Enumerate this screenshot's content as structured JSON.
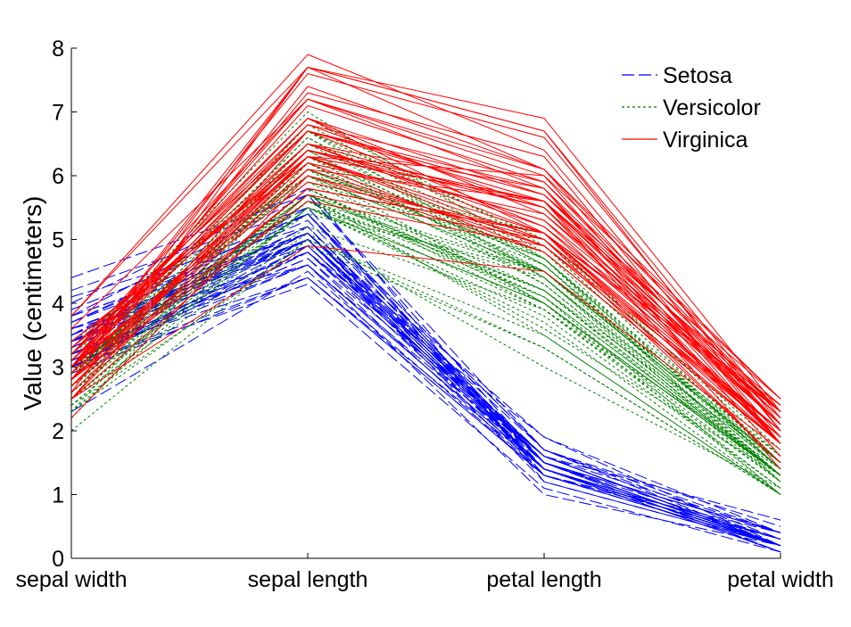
{
  "chart_data": {
    "type": "line",
    "chart_kind": "parallel-coordinates",
    "categories": [
      "sepal width",
      "sepal length",
      "petal length",
      "petal width"
    ],
    "ylabel": "Value (centimeters)",
    "xlabel": "",
    "ylim": [
      0,
      8
    ],
    "yticks": [
      0,
      1,
      2,
      3,
      4,
      5,
      6,
      7,
      8
    ],
    "grid": false,
    "legend_position": "top-right",
    "series": [
      {
        "name": "Setosa",
        "color": "#0000ff",
        "line_style": "dashed",
        "lines": [
          [
            3.5,
            5.1,
            1.4,
            0.2
          ],
          [
            3.0,
            4.9,
            1.4,
            0.2
          ],
          [
            3.2,
            4.7,
            1.3,
            0.2
          ],
          [
            3.1,
            4.6,
            1.5,
            0.2
          ],
          [
            3.6,
            5.0,
            1.4,
            0.2
          ],
          [
            3.9,
            5.4,
            1.7,
            0.4
          ],
          [
            3.4,
            4.6,
            1.4,
            0.3
          ],
          [
            3.4,
            5.0,
            1.5,
            0.2
          ],
          [
            2.9,
            4.4,
            1.4,
            0.2
          ],
          [
            3.1,
            4.9,
            1.5,
            0.1
          ],
          [
            3.7,
            5.4,
            1.5,
            0.2
          ],
          [
            3.4,
            4.8,
            1.6,
            0.2
          ],
          [
            3.0,
            4.8,
            1.4,
            0.1
          ],
          [
            3.0,
            4.3,
            1.1,
            0.1
          ],
          [
            4.0,
            5.8,
            1.2,
            0.2
          ],
          [
            4.4,
            5.7,
            1.5,
            0.4
          ],
          [
            3.9,
            5.4,
            1.3,
            0.4
          ],
          [
            3.5,
            5.1,
            1.4,
            0.3
          ],
          [
            3.8,
            5.7,
            1.7,
            0.3
          ],
          [
            3.8,
            5.1,
            1.5,
            0.3
          ],
          [
            3.4,
            5.4,
            1.7,
            0.2
          ],
          [
            3.7,
            5.1,
            1.5,
            0.4
          ],
          [
            3.6,
            4.6,
            1.0,
            0.2
          ],
          [
            3.3,
            5.1,
            1.7,
            0.5
          ],
          [
            3.4,
            4.8,
            1.9,
            0.2
          ],
          [
            3.0,
            5.0,
            1.6,
            0.2
          ],
          [
            3.4,
            5.0,
            1.6,
            0.4
          ],
          [
            3.5,
            5.2,
            1.5,
            0.2
          ],
          [
            3.4,
            5.2,
            1.4,
            0.2
          ],
          [
            3.2,
            4.7,
            1.6,
            0.2
          ],
          [
            3.1,
            4.8,
            1.6,
            0.2
          ],
          [
            3.4,
            5.4,
            1.5,
            0.4
          ],
          [
            4.1,
            5.2,
            1.5,
            0.1
          ],
          [
            4.2,
            5.5,
            1.4,
            0.2
          ],
          [
            3.1,
            4.9,
            1.5,
            0.2
          ],
          [
            3.2,
            5.0,
            1.2,
            0.2
          ],
          [
            3.5,
            5.5,
            1.3,
            0.2
          ],
          [
            3.6,
            4.9,
            1.4,
            0.1
          ],
          [
            3.0,
            4.4,
            1.3,
            0.2
          ],
          [
            3.4,
            5.1,
            1.5,
            0.2
          ],
          [
            3.5,
            5.0,
            1.3,
            0.3
          ],
          [
            2.3,
            4.5,
            1.3,
            0.3
          ],
          [
            3.2,
            4.4,
            1.3,
            0.2
          ],
          [
            3.5,
            5.0,
            1.6,
            0.6
          ],
          [
            3.8,
            5.1,
            1.9,
            0.4
          ],
          [
            3.0,
            4.8,
            1.4,
            0.3
          ],
          [
            3.8,
            5.1,
            1.6,
            0.2
          ],
          [
            3.2,
            4.6,
            1.4,
            0.2
          ],
          [
            3.7,
            5.3,
            1.5,
            0.2
          ],
          [
            3.3,
            5.0,
            1.4,
            0.2
          ]
        ]
      },
      {
        "name": "Versicolor",
        "color": "#008000",
        "line_style": "dotted",
        "lines": [
          [
            3.2,
            7.0,
            4.7,
            1.4
          ],
          [
            3.2,
            6.4,
            4.5,
            1.5
          ],
          [
            3.1,
            6.9,
            4.9,
            1.5
          ],
          [
            2.3,
            5.5,
            4.0,
            1.3
          ],
          [
            2.8,
            6.5,
            4.6,
            1.5
          ],
          [
            2.8,
            5.7,
            4.5,
            1.3
          ],
          [
            3.3,
            6.3,
            4.7,
            1.6
          ],
          [
            2.4,
            4.9,
            3.3,
            1.0
          ],
          [
            2.9,
            6.6,
            4.6,
            1.3
          ],
          [
            2.7,
            5.2,
            3.9,
            1.4
          ],
          [
            2.0,
            5.0,
            3.5,
            1.0
          ],
          [
            3.0,
            5.9,
            4.2,
            1.5
          ],
          [
            2.2,
            6.0,
            4.0,
            1.0
          ],
          [
            2.9,
            6.1,
            4.7,
            1.4
          ],
          [
            2.9,
            5.6,
            3.6,
            1.3
          ],
          [
            3.1,
            6.7,
            4.4,
            1.4
          ],
          [
            3.0,
            5.6,
            4.5,
            1.5
          ],
          [
            2.7,
            5.8,
            4.1,
            1.0
          ],
          [
            2.2,
            6.2,
            4.5,
            1.5
          ],
          [
            2.5,
            5.6,
            3.9,
            1.1
          ],
          [
            3.2,
            5.9,
            4.8,
            1.8
          ],
          [
            2.8,
            6.1,
            4.0,
            1.3
          ],
          [
            2.5,
            6.3,
            4.9,
            1.5
          ],
          [
            2.8,
            6.1,
            4.7,
            1.2
          ],
          [
            2.9,
            6.4,
            4.3,
            1.3
          ],
          [
            3.0,
            6.6,
            4.4,
            1.4
          ],
          [
            2.8,
            6.8,
            4.8,
            1.4
          ],
          [
            3.0,
            6.7,
            5.0,
            1.7
          ],
          [
            2.9,
            6.0,
            4.5,
            1.5
          ],
          [
            2.6,
            5.7,
            3.5,
            1.0
          ],
          [
            2.4,
            5.5,
            3.8,
            1.1
          ],
          [
            2.4,
            5.5,
            3.7,
            1.0
          ],
          [
            2.7,
            5.8,
            3.9,
            1.2
          ],
          [
            2.7,
            6.0,
            5.1,
            1.6
          ],
          [
            3.0,
            5.4,
            4.5,
            1.5
          ],
          [
            3.4,
            6.0,
            4.5,
            1.6
          ],
          [
            3.1,
            6.7,
            4.7,
            1.5
          ],
          [
            2.3,
            6.3,
            4.4,
            1.3
          ],
          [
            3.0,
            5.6,
            4.1,
            1.3
          ],
          [
            2.5,
            5.5,
            4.0,
            1.3
          ],
          [
            2.6,
            5.5,
            4.4,
            1.2
          ],
          [
            3.0,
            6.1,
            4.6,
            1.4
          ],
          [
            2.6,
            5.8,
            4.0,
            1.2
          ],
          [
            2.3,
            5.0,
            3.3,
            1.0
          ],
          [
            2.7,
            5.6,
            4.2,
            1.3
          ],
          [
            3.0,
            5.7,
            4.2,
            1.2
          ],
          [
            2.9,
            5.7,
            4.2,
            1.3
          ],
          [
            2.9,
            6.2,
            4.3,
            1.3
          ],
          [
            2.5,
            5.1,
            3.0,
            1.1
          ],
          [
            2.8,
            5.7,
            4.1,
            1.3
          ]
        ]
      },
      {
        "name": "Virginica",
        "color": "#ff0000",
        "line_style": "solid",
        "lines": [
          [
            3.3,
            6.3,
            6.0,
            2.5
          ],
          [
            2.7,
            5.8,
            5.1,
            1.9
          ],
          [
            3.0,
            7.1,
            5.9,
            2.1
          ],
          [
            2.9,
            6.3,
            5.6,
            1.8
          ],
          [
            3.0,
            6.5,
            5.8,
            2.2
          ],
          [
            3.0,
            7.6,
            6.6,
            2.1
          ],
          [
            2.5,
            4.9,
            4.5,
            1.7
          ],
          [
            2.9,
            7.3,
            6.3,
            1.8
          ],
          [
            2.5,
            6.7,
            5.8,
            1.8
          ],
          [
            3.6,
            7.2,
            6.1,
            2.5
          ],
          [
            3.2,
            6.5,
            5.1,
            2.0
          ],
          [
            2.7,
            6.4,
            5.3,
            1.9
          ],
          [
            3.0,
            6.8,
            5.5,
            2.1
          ],
          [
            2.5,
            5.7,
            5.0,
            2.0
          ],
          [
            2.8,
            5.8,
            5.1,
            2.4
          ],
          [
            3.2,
            6.4,
            5.3,
            2.3
          ],
          [
            3.0,
            6.5,
            5.5,
            1.8
          ],
          [
            3.8,
            7.7,
            6.7,
            2.2
          ],
          [
            2.6,
            7.7,
            6.9,
            2.3
          ],
          [
            2.2,
            6.0,
            5.0,
            1.5
          ],
          [
            3.2,
            6.9,
            5.7,
            2.3
          ],
          [
            2.8,
            5.6,
            4.9,
            2.0
          ],
          [
            2.8,
            7.7,
            6.7,
            2.0
          ],
          [
            2.7,
            6.3,
            4.9,
            1.8
          ],
          [
            3.3,
            6.7,
            5.7,
            2.1
          ],
          [
            3.2,
            7.2,
            6.0,
            1.8
          ],
          [
            2.8,
            6.2,
            4.8,
            1.8
          ],
          [
            3.0,
            6.1,
            4.9,
            1.8
          ],
          [
            2.8,
            6.4,
            5.6,
            2.1
          ],
          [
            3.0,
            7.2,
            5.8,
            1.6
          ],
          [
            2.8,
            7.4,
            6.1,
            1.9
          ],
          [
            3.8,
            7.9,
            6.4,
            2.0
          ],
          [
            2.8,
            6.4,
            5.6,
            2.2
          ],
          [
            2.8,
            6.3,
            5.1,
            1.5
          ],
          [
            2.6,
            6.1,
            5.6,
            1.4
          ],
          [
            3.0,
            7.7,
            6.1,
            2.3
          ],
          [
            3.4,
            6.3,
            5.6,
            2.4
          ],
          [
            3.1,
            6.4,
            5.5,
            1.8
          ],
          [
            3.0,
            6.0,
            4.8,
            1.8
          ],
          [
            3.1,
            6.9,
            5.4,
            2.1
          ],
          [
            3.1,
            6.7,
            5.6,
            2.4
          ],
          [
            3.1,
            6.9,
            5.1,
            2.3
          ],
          [
            2.7,
            5.8,
            5.1,
            1.9
          ],
          [
            3.2,
            6.8,
            5.9,
            2.3
          ],
          [
            3.3,
            6.7,
            5.7,
            2.5
          ],
          [
            3.0,
            6.7,
            5.2,
            2.3
          ],
          [
            2.5,
            6.3,
            5.0,
            1.9
          ],
          [
            3.0,
            6.5,
            5.2,
            2.0
          ],
          [
            3.4,
            6.2,
            5.4,
            2.3
          ],
          [
            3.0,
            5.9,
            5.1,
            1.8
          ]
        ]
      }
    ]
  }
}
